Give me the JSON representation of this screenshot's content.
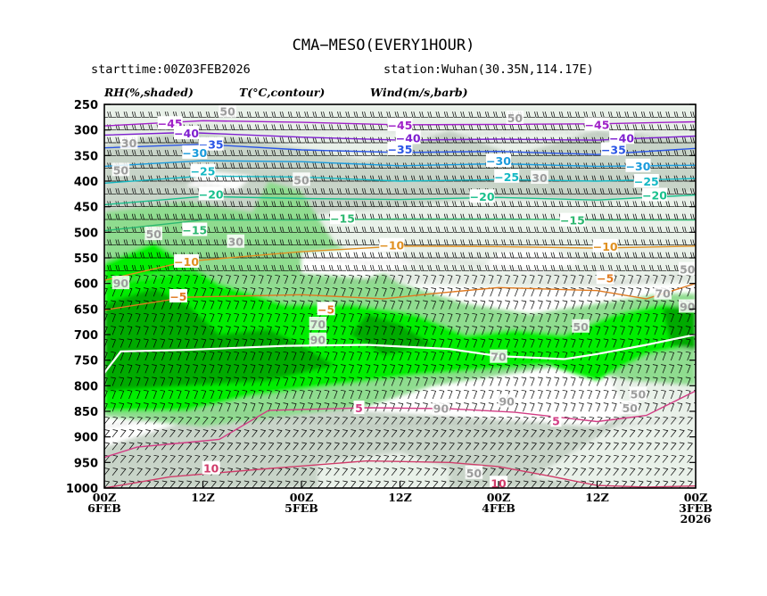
{
  "chart_data": {
    "type": "time-height cross section",
    "title": "CMA−MESO(EVERY1HOUR)",
    "subtitle_left": "starttime:00Z03FEB2026",
    "subtitle_right": "station:Wuhan(30.35N,114.17E)",
    "field_labels": [
      "RH(%,shaded)",
      "T(°C,contour)",
      "Wind(m/s,barb)"
    ],
    "y_axis": {
      "type": "pressure",
      "range": [
        1000,
        250
      ],
      "ticks": [
        "250",
        "300",
        "350",
        "400",
        "450",
        "500",
        "550",
        "600",
        "650",
        "700",
        "750",
        "800",
        "850",
        "900",
        "950",
        "1000"
      ]
    },
    "x_axis": {
      "reversed": true,
      "range_hours": [
        72,
        0
      ],
      "ticks": [
        {
          "hour": 72,
          "l1": "00Z",
          "l2": "6FEB",
          "l3": ""
        },
        {
          "hour": 60,
          "l1": "12Z",
          "l2": "",
          "l3": ""
        },
        {
          "hour": 48,
          "l1": "00Z",
          "l2": "5FEB",
          "l3": ""
        },
        {
          "hour": 36,
          "l1": "12Z",
          "l2": "",
          "l3": ""
        },
        {
          "hour": 24,
          "l1": "00Z",
          "l2": "4FEB",
          "l3": ""
        },
        {
          "hour": 12,
          "l1": "12Z",
          "l2": "",
          "l3": ""
        },
        {
          "hour": 0,
          "l1": "00Z",
          "l2": "3FEB",
          "l3": "2026"
        }
      ]
    },
    "rh_shading": {
      "levels": [
        30,
        50,
        70,
        90
      ],
      "colors": [
        "#e9f1e9",
        "#c8d4c8",
        "#8fdc8f",
        "#00ee00",
        "#00aa00"
      ]
    },
    "rh_labels": [
      {
        "text": "50",
        "hour": 57,
        "p": 263
      },
      {
        "text": "30",
        "hour": 69,
        "p": 325
      },
      {
        "text": "50",
        "hour": 70,
        "p": 378
      },
      {
        "text": "50",
        "hour": 48,
        "p": 397
      },
      {
        "text": "50",
        "hour": 66,
        "p": 503
      },
      {
        "text": "30",
        "hour": 56,
        "p": 518
      },
      {
        "text": "50",
        "hour": 22,
        "p": 276
      },
      {
        "text": "30",
        "hour": 19,
        "p": 393
      },
      {
        "text": "90",
        "hour": 70,
        "p": 599
      },
      {
        "text": "70",
        "hour": 46,
        "p": 679
      },
      {
        "text": "90",
        "hour": 46,
        "p": 710
      },
      {
        "text": "50",
        "hour": 1,
        "p": 572
      },
      {
        "text": "50",
        "hour": 14,
        "p": 684
      },
      {
        "text": "70",
        "hour": 4,
        "p": 619
      },
      {
        "text": "90",
        "hour": 1,
        "p": 645
      },
      {
        "text": "70",
        "hour": 24,
        "p": 743
      },
      {
        "text": "90",
        "hour": 31,
        "p": 844
      },
      {
        "text": "90",
        "hour": 23,
        "p": 830
      },
      {
        "text": "50",
        "hour": 7,
        "p": 816
      },
      {
        "text": "50",
        "hour": 8,
        "p": 843
      },
      {
        "text": "50",
        "hour": 27,
        "p": 970
      }
    ],
    "temperature_contours": [
      {
        "value": -45,
        "color": "#a020c8",
        "points": [
          [
            72,
            292
          ],
          [
            60,
            282
          ],
          [
            48,
            285
          ],
          [
            36,
            290
          ],
          [
            24,
            289
          ],
          [
            12,
            288
          ],
          [
            0,
            284
          ]
        ]
      },
      {
        "value": -40,
        "color": "#7f1fd0",
        "points": [
          [
            72,
            310
          ],
          [
            62,
            305
          ],
          [
            48,
            314
          ],
          [
            36,
            320
          ],
          [
            24,
            318
          ],
          [
            12,
            320
          ],
          [
            0,
            312
          ]
        ]
      },
      {
        "value": -35,
        "color": "#2a55e6",
        "points": [
          [
            72,
            335
          ],
          [
            60,
            328
          ],
          [
            48,
            339
          ],
          [
            36,
            344
          ],
          [
            24,
            342
          ],
          [
            12,
            348
          ],
          [
            0,
            336
          ]
        ]
      },
      {
        "value": -30,
        "color": "#1a9bdc",
        "points": [
          [
            72,
            371
          ],
          [
            60,
            360
          ],
          [
            48,
            362
          ],
          [
            36,
            370
          ],
          [
            24,
            366
          ],
          [
            12,
            371
          ],
          [
            0,
            369
          ]
        ]
      },
      {
        "value": -25,
        "color": "#15b8c4",
        "points": [
          [
            72,
            404
          ],
          [
            60,
            390
          ],
          [
            48,
            392
          ],
          [
            36,
            400
          ],
          [
            24,
            397
          ],
          [
            12,
            400
          ],
          [
            0,
            395
          ]
        ]
      },
      {
        "value": -20,
        "color": "#19c08c",
        "points": [
          [
            72,
            446
          ],
          [
            60,
            430
          ],
          [
            48,
            434
          ],
          [
            36,
            436
          ],
          [
            24,
            432
          ],
          [
            12,
            437
          ],
          [
            0,
            427
          ]
        ]
      },
      {
        "value": -15,
        "color": "#2cb870",
        "points": [
          [
            72,
            497
          ],
          [
            60,
            476
          ],
          [
            48,
            476
          ],
          [
            36,
            474
          ],
          [
            24,
            474
          ],
          [
            12,
            476
          ],
          [
            0,
            476
          ]
        ]
      },
      {
        "value": -10,
        "color": "#e09020",
        "points": [
          [
            72,
            594
          ],
          [
            62,
            557
          ],
          [
            48,
            538
          ],
          [
            36,
            527
          ],
          [
            24,
            528
          ],
          [
            12,
            531
          ],
          [
            0,
            527
          ]
        ]
      },
      {
        "value": -5,
        "color": "#e07a20",
        "points": [
          [
            72,
            652
          ],
          [
            62,
            627
          ],
          [
            48,
            622
          ],
          [
            38,
            630
          ],
          [
            32,
            620
          ],
          [
            24,
            608
          ],
          [
            12,
            614
          ],
          [
            6,
            630
          ],
          [
            0,
            600
          ]
        ]
      },
      {
        "value": 0,
        "color": "#ffffff",
        "points": [
          [
            72,
            775
          ],
          [
            70,
            733
          ],
          [
            62,
            730
          ],
          [
            50,
            722
          ],
          [
            40,
            720
          ],
          [
            30,
            728
          ],
          [
            24,
            742
          ],
          [
            16,
            748
          ],
          [
            12,
            738
          ],
          [
            6,
            720
          ],
          [
            0,
            700
          ]
        ]
      },
      {
        "value": 5,
        "color": "#d23c84",
        "points": [
          [
            72,
            940
          ],
          [
            68,
            920
          ],
          [
            62,
            911
          ],
          [
            58,
            905
          ],
          [
            52,
            848
          ],
          [
            40,
            843
          ],
          [
            30,
            845
          ],
          [
            22,
            852
          ],
          [
            12,
            870
          ],
          [
            6,
            858
          ],
          [
            0,
            810
          ]
        ]
      },
      {
        "value": 10,
        "color": "#d03c6a",
        "points": [
          [
            72,
            1000
          ],
          [
            64,
            978
          ],
          [
            52,
            962
          ],
          [
            40,
            947
          ],
          [
            30,
            950
          ],
          [
            24,
            958
          ],
          [
            18,
            976
          ],
          [
            12,
            995
          ],
          [
            6,
            998
          ],
          [
            0,
            996
          ]
        ]
      }
    ],
    "temperature_labels": [
      {
        "text": "−45",
        "hour": 64,
        "p": 287
      },
      {
        "text": "−40",
        "hour": 62,
        "p": 306
      },
      {
        "text": "−35",
        "hour": 59,
        "p": 328
      },
      {
        "text": "−30",
        "hour": 61,
        "p": 344
      },
      {
        "text": "−25",
        "hour": 60,
        "p": 380
      },
      {
        "text": "−20",
        "hour": 59,
        "p": 425
      },
      {
        "text": "−15",
        "hour": 61,
        "p": 495
      },
      {
        "text": "−10",
        "hour": 62,
        "p": 557
      },
      {
        "text": "−5",
        "hour": 63,
        "p": 625
      },
      {
        "text": "−45",
        "hour": 36,
        "p": 290
      },
      {
        "text": "−40",
        "hour": 35,
        "p": 315
      },
      {
        "text": "−35",
        "hour": 36,
        "p": 337
      },
      {
        "text": "−30",
        "hour": 24,
        "p": 360
      },
      {
        "text": "−25",
        "hour": 23,
        "p": 391
      },
      {
        "text": "−20",
        "hour": 26,
        "p": 430
      },
      {
        "text": "−15",
        "hour": 43,
        "p": 472
      },
      {
        "text": "−10",
        "hour": 37,
        "p": 525
      },
      {
        "text": "−5",
        "hour": 45,
        "p": 650
      },
      {
        "text": "−45",
        "hour": 12,
        "p": 289
      },
      {
        "text": "−40",
        "hour": 9,
        "p": 315
      },
      {
        "text": "−35",
        "hour": 10,
        "p": 338
      },
      {
        "text": "−30",
        "hour": 7,
        "p": 370
      },
      {
        "text": "−25",
        "hour": 6,
        "p": 400
      },
      {
        "text": "−20",
        "hour": 5,
        "p": 427
      },
      {
        "text": "−15",
        "hour": 15,
        "p": 476
      },
      {
        "text": "−10",
        "hour": 11,
        "p": 527
      },
      {
        "text": "−5",
        "hour": 11,
        "p": 589
      },
      {
        "text": "5",
        "hour": 41,
        "p": 843
      },
      {
        "text": "5",
        "hour": 17,
        "p": 868
      },
      {
        "text": "10",
        "hour": 59,
        "p": 961
      },
      {
        "text": "10",
        "hour": 24,
        "p": 990
      }
    ],
    "wind_barbs": {
      "levels_hpa": [
        250,
        275,
        300,
        325,
        350,
        375,
        400,
        425,
        450,
        475,
        500,
        525,
        550,
        575,
        600,
        625,
        650,
        675,
        700,
        725,
        750,
        775,
        800,
        825,
        850,
        875,
        900,
        925,
        950,
        975,
        1000
      ],
      "interval_hours": 1,
      "note": "dense barbs at every pressure level for every hour"
    }
  },
  "colors": {
    "axis": "#000000",
    "grid": "#7a7a7a",
    "rh_label_bg": "#ffffff"
  }
}
